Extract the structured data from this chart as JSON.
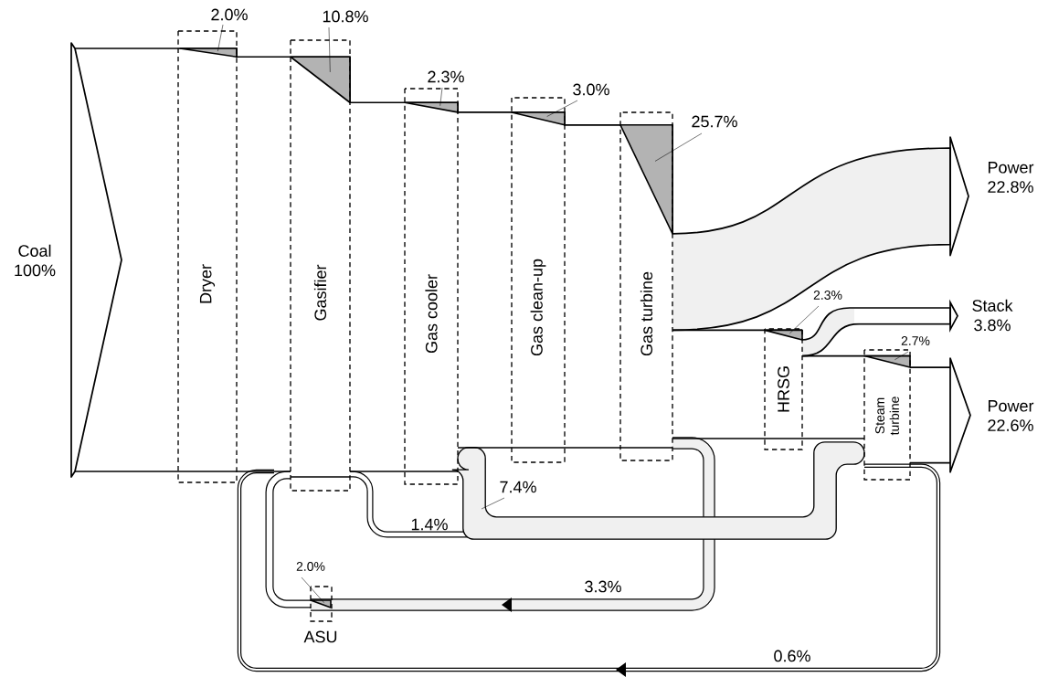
{
  "chart_data": {
    "type": "other",
    "categories": [
      "Coal",
      "Dryer",
      "Gasifier",
      "Gas cooler",
      "Gas clean-up",
      "Gas turbine",
      "HRSG",
      "Steam turbine",
      "ASU",
      "Power",
      "Stack",
      "Power"
    ],
    "values": [
      100,
      2.0,
      10.8,
      2.3,
      3.0,
      25.7,
      2.3,
      2.7,
      2.0,
      22.8,
      3.8,
      22.6
    ],
    "value_labels": [
      "100%",
      "2.0%",
      "10.8%",
      "2.3%",
      "3.0%",
      "25.7%",
      "2.3%",
      "2.7%",
      "2.0%",
      "22.8%",
      "3.8%",
      "22.6%"
    ],
    "annotations": [
      "7.4%",
      "1.4%",
      "3.3%",
      "0.6%"
    ],
    "color": "#b3b3b3"
  }
}
